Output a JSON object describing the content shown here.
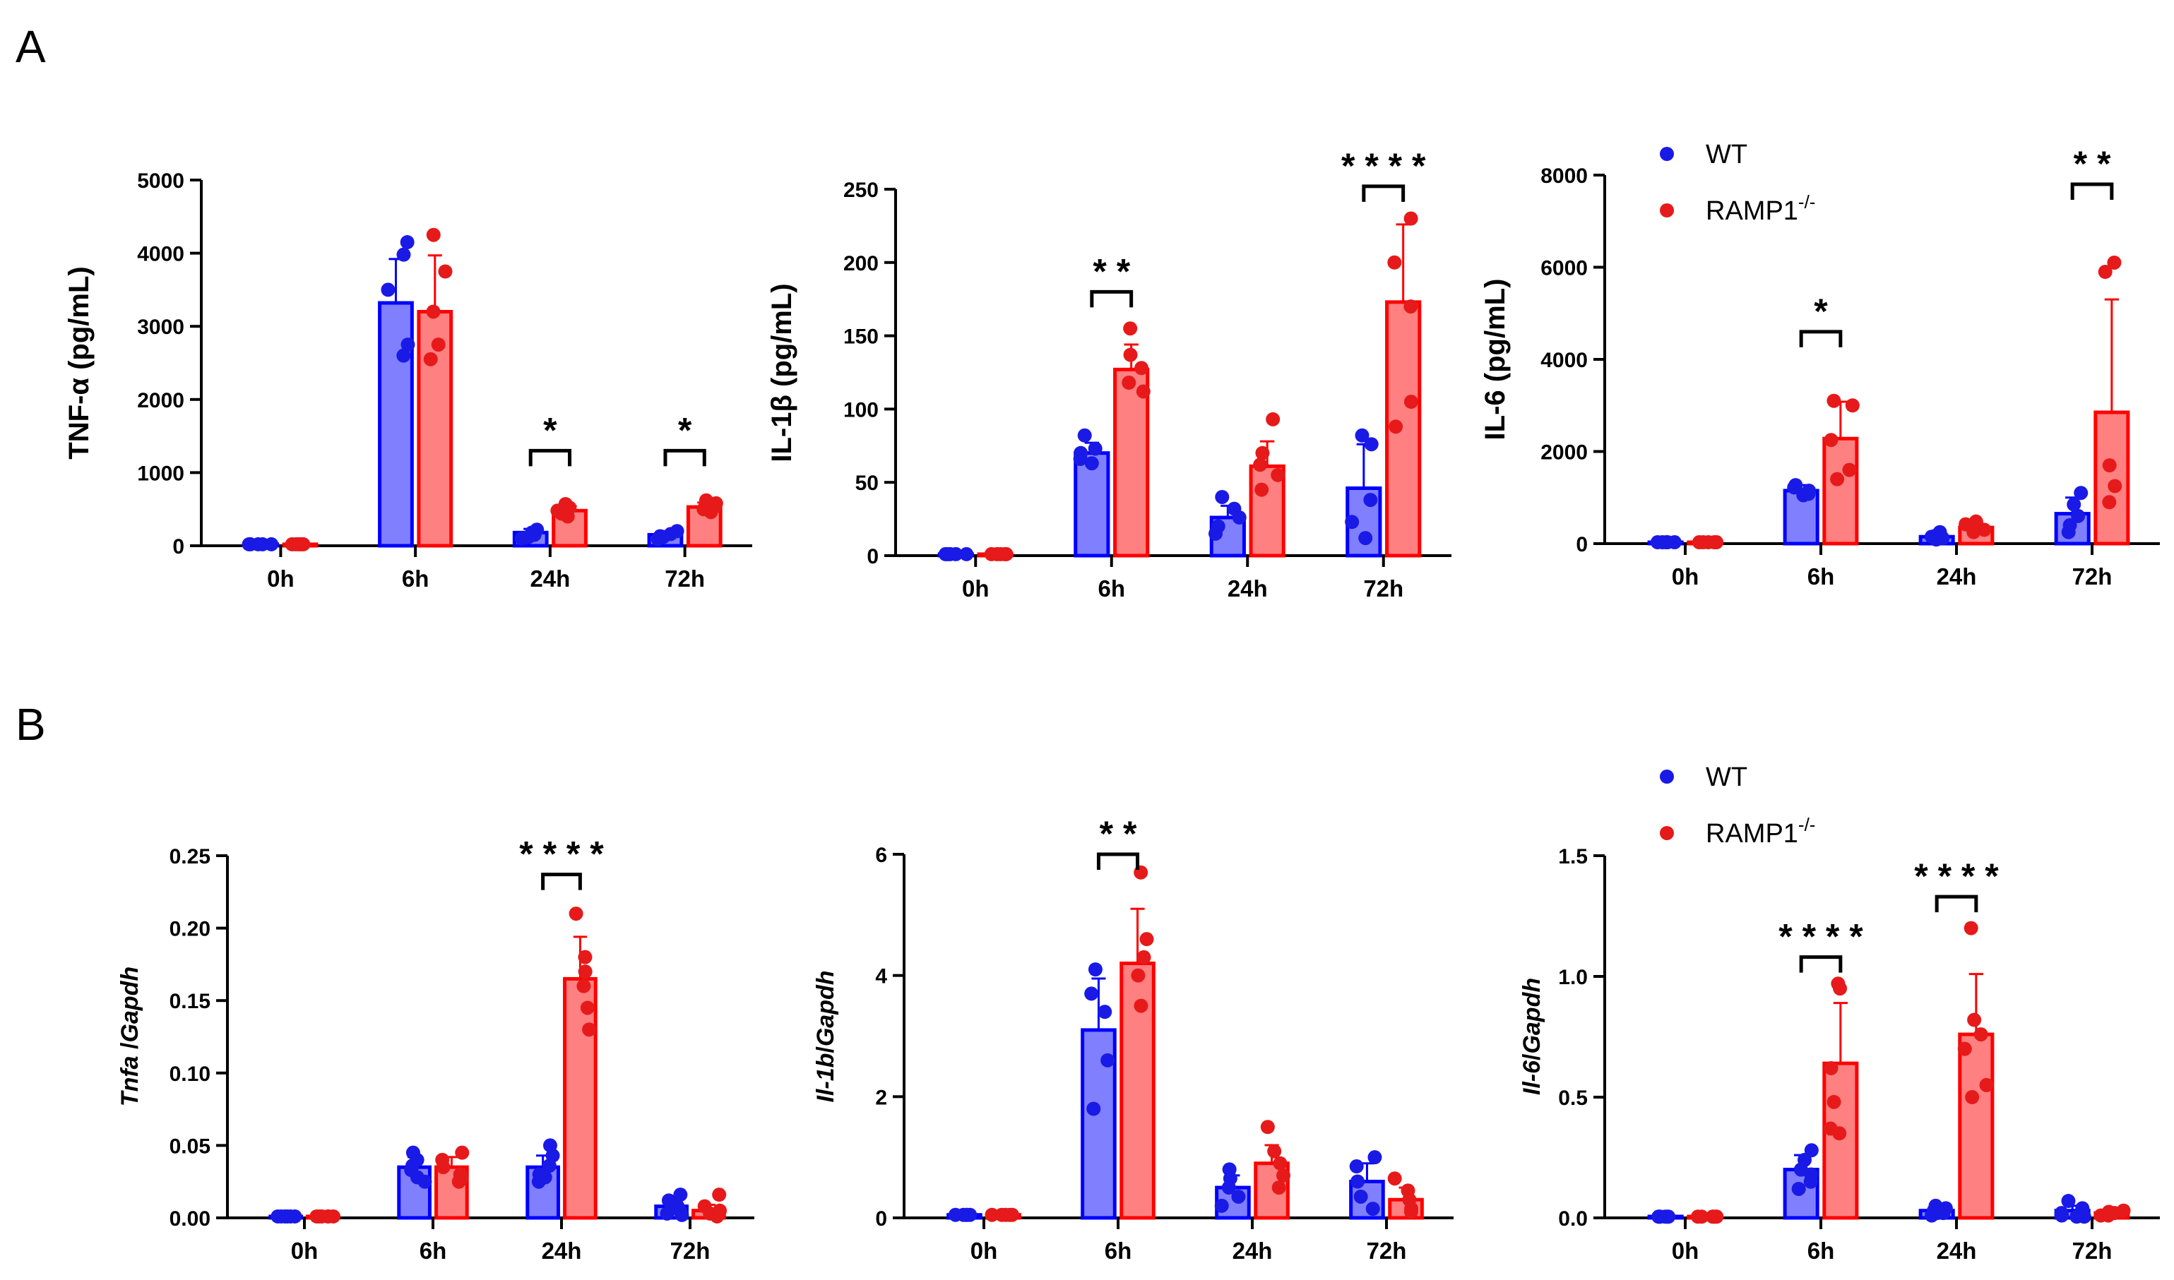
{
  "colors": {
    "wt_fill": "#8080ff",
    "wt_stroke": "#0000ff",
    "wt_dot": "#1a1ae6",
    "ko_fill": "#ff8080",
    "ko_stroke": "#ff0000",
    "ko_dot": "#e61a1a"
  },
  "legend": {
    "wt": "WT",
    "ko": "RAMP1",
    "ko_sup": "-/-"
  },
  "panels": [
    {
      "letter": "A"
    },
    {
      "letter": "B"
    }
  ],
  "chart_data": [
    {
      "type": "bar",
      "panel": "A",
      "ylabel": "TNF-α (pg/mL)",
      "ylabel_italic": false,
      "categories": [
        "0h",
        "6h",
        "24h",
        "72h"
      ],
      "ylim": [
        0,
        5000
      ],
      "yticks": [
        0,
        1000,
        2000,
        3000,
        4000,
        5000
      ],
      "yticklabels": [
        "0",
        "1000",
        "2000",
        "3000",
        "4000",
        "5000"
      ],
      "legend_shown": false,
      "series": [
        {
          "name": "WT",
          "values": [
            20,
            3320,
            180,
            150
          ],
          "sd": [
            10,
            600,
            50,
            50
          ],
          "points": [
            [
              20,
              20,
              20,
              20,
              20
            ],
            [
              4150,
              3980,
              3500,
              2750,
              2600
            ],
            [
              220,
              180,
              150,
              120,
              100
            ],
            [
              200,
              160,
              130,
              120,
              90
            ]
          ]
        },
        {
          "name": "RAMP1-/-",
          "values": [
            20,
            3200,
            480,
            530
          ],
          "sd": [
            10,
            770,
            60,
            60
          ],
          "points": [
            [
              20,
              20,
              20,
              20,
              20
            ],
            [
              4250,
              3750,
              3200,
              2750,
              2550
            ],
            [
              570,
              520,
              480,
              440,
              400
            ],
            [
              620,
              580,
              530,
              500,
              460
            ]
          ]
        }
      ],
      "significance": [
        {
          "category": "24h",
          "label": "*",
          "y": 1300
        },
        {
          "category": "72h",
          "label": "*",
          "y": 1300
        }
      ]
    },
    {
      "type": "bar",
      "panel": "A",
      "ylabel": "IL-1β (pg/mL)",
      "ylabel_italic": false,
      "categories": [
        "0h",
        "6h",
        "24h",
        "72h"
      ],
      "ylim": [
        0,
        250
      ],
      "yticks": [
        0,
        50,
        100,
        150,
        200,
        250
      ],
      "yticklabels": [
        "0",
        "50",
        "100",
        "150",
        "200",
        "250"
      ],
      "legend_shown": false,
      "series": [
        {
          "name": "WT",
          "values": [
            1,
            70,
            26,
            46
          ],
          "sd": [
            0.5,
            7,
            8,
            30
          ],
          "points": [
            [
              1,
              1,
              1,
              1,
              1
            ],
            [
              82,
              73,
              70,
              66,
              63
            ],
            [
              40,
              32,
              26,
              20,
              15
            ],
            [
              82,
              76,
              38,
              23,
              12
            ]
          ]
        },
        {
          "name": "RAMP1-/-",
          "values": [
            1,
            127,
            61,
            173
          ],
          "sd": [
            0.5,
            17,
            17,
            53
          ],
          "points": [
            [
              1,
              1,
              1,
              1,
              1
            ],
            [
              155,
              137,
              128,
              118,
              112
            ],
            [
              93,
              70,
              62,
              55,
              45
            ],
            [
              230,
              200,
              170,
              105,
              88
            ]
          ]
        }
      ],
      "significance": [
        {
          "category": "6h",
          "label": "* *",
          "y": 180
        },
        {
          "category": "72h",
          "label": "* * * *",
          "y": 252
        }
      ]
    },
    {
      "type": "bar",
      "panel": "A",
      "ylabel": "IL-6 (pg/mL)",
      "ylabel_italic": false,
      "categories": [
        "0h",
        "6h",
        "24h",
        "72h"
      ],
      "ylim": [
        0,
        8000
      ],
      "yticks": [
        0,
        2000,
        4000,
        6000,
        8000
      ],
      "yticklabels": [
        "0",
        "2000",
        "4000",
        "6000",
        "8000"
      ],
      "legend_shown": true,
      "series": [
        {
          "name": "WT",
          "values": [
            30,
            1150,
            150,
            650
          ],
          "sd": [
            15,
            120,
            60,
            350
          ],
          "points": [
            [
              30,
              30,
              30,
              30,
              30
            ],
            [
              1270,
              1220,
              1150,
              1080,
              1050
            ],
            [
              250,
              180,
              150,
              120,
              90
            ],
            [
              1100,
              850,
              600,
              400,
              250
            ]
          ]
        },
        {
          "name": "RAMP1-/-",
          "values": [
            30,
            2280,
            350,
            2850
          ],
          "sd": [
            15,
            800,
            110,
            2450
          ],
          "points": [
            [
              30,
              30,
              30,
              30,
              30
            ],
            [
              3100,
              3000,
              2250,
              1600,
              1400
            ],
            [
              480,
              420,
              350,
              300,
              250
            ],
            [
              6100,
              5900,
              1700,
              1250,
              900
            ]
          ]
        }
      ],
      "significance": [
        {
          "category": "6h",
          "label": "*",
          "y": 4600
        },
        {
          "category": "72h",
          "label": "* *",
          "y": 7800
        }
      ]
    },
    {
      "type": "bar",
      "panel": "B",
      "ylabel_italic": true,
      "ylabel_parts": [
        "Tnfa",
        " /",
        "Gapdh"
      ],
      "categories": [
        "0h",
        "6h",
        "24h",
        "72h"
      ],
      "ylim": [
        0,
        0.25
      ],
      "yticks": [
        0,
        0.05,
        0.1,
        0.15,
        0.2,
        0.25
      ],
      "yticklabels": [
        "0.00",
        "0.05",
        "0.10",
        "0.15",
        "0.20",
        "0.25"
      ],
      "legend_shown": false,
      "series": [
        {
          "name": "WT",
          "values": [
            0.001,
            0.035,
            0.035,
            0.008
          ],
          "sd": [
            0.0005,
            0.007,
            0.008,
            0.004
          ],
          "points": [
            [
              0.001,
              0.001,
              0.001,
              0.001,
              0.001,
              0.001
            ],
            [
              0.045,
              0.04,
              0.036,
              0.033,
              0.028,
              0.025
            ],
            [
              0.05,
              0.043,
              0.036,
              0.03,
              0.028,
              0.025
            ],
            [
              0.016,
              0.012,
              0.008,
              0.005,
              0.003,
              0.002
            ]
          ]
        },
        {
          "name": "RAMP1-/-",
          "values": [
            0.001,
            0.035,
            0.165,
            0.005
          ],
          "sd": [
            0.0005,
            0.007,
            0.029,
            0.004
          ],
          "points": [
            [
              0.001,
              0.001,
              0.001,
              0.001,
              0.001,
              0.001
            ],
            [
              0.045,
              0.04,
              0.035,
              0.03,
              0.027,
              0.025
            ],
            [
              0.21,
              0.18,
              0.17,
              0.16,
              0.145,
              0.13
            ],
            [
              0.016,
              0.008,
              0.005,
              0.003,
              0.002,
              0.001
            ]
          ]
        }
      ],
      "significance": [
        {
          "category": "24h",
          "label": "* * * *",
          "y": 0.237
        }
      ]
    },
    {
      "type": "bar",
      "panel": "B",
      "ylabel_italic": true,
      "ylabel_parts": [
        "Il-1b",
        "/",
        "Gapdh"
      ],
      "categories": [
        "0h",
        "6h",
        "24h",
        "72h"
      ],
      "ylim": [
        0,
        6
      ],
      "yticks": [
        0,
        2,
        4,
        6
      ],
      "yticklabels": [
        "0",
        "2",
        "4",
        "6"
      ],
      "legend_shown": false,
      "series": [
        {
          "name": "WT",
          "values": [
            0.05,
            3.1,
            0.5,
            0.6
          ],
          "sd": [
            0.02,
            0.85,
            0.2,
            0.3
          ],
          "points": [
            [
              0.05,
              0.05,
              0.05,
              0.05,
              0.05
            ],
            [
              4.1,
              3.7,
              3.4,
              2.6,
              1.8
            ],
            [
              0.8,
              0.65,
              0.5,
              0.35,
              0.2
            ],
            [
              1.0,
              0.85,
              0.6,
              0.35,
              0.15
            ]
          ]
        },
        {
          "name": "RAMP1-/-",
          "values": [
            0.05,
            4.2,
            0.9,
            0.3
          ],
          "sd": [
            0.02,
            0.9,
            0.3,
            0.2
          ],
          "points": [
            [
              0.05,
              0.05,
              0.05,
              0.05,
              0.05
            ],
            [
              5.7,
              4.6,
              4.3,
              4.0,
              3.5
            ],
            [
              1.5,
              1.1,
              0.9,
              0.7,
              0.5
            ],
            [
              0.65,
              0.45,
              0.3,
              0.15,
              0.1
            ]
          ]
        }
      ],
      "significance": [
        {
          "category": "6h",
          "label": "* *",
          "y": 6.0
        }
      ]
    },
    {
      "type": "bar",
      "panel": "B",
      "ylabel_italic": true,
      "ylabel_parts": [
        "Il-6",
        "/",
        "Gapdh"
      ],
      "categories": [
        "0h",
        "6h",
        "24h",
        "72h"
      ],
      "ylim": [
        0,
        1.5
      ],
      "yticks": [
        0,
        0.5,
        1.0,
        1.5
      ],
      "yticklabels": [
        "0.0",
        "0.5",
        "1.0",
        "1.5"
      ],
      "legend_shown": true,
      "series": [
        {
          "name": "WT",
          "values": [
            0.005,
            0.2,
            0.03,
            0.03
          ],
          "sd": [
            0.002,
            0.06,
            0.01,
            0.02
          ],
          "points": [
            [
              0.005,
              0.005,
              0.005,
              0.005,
              0.005,
              0.005
            ],
            [
              0.28,
              0.24,
              0.2,
              0.18,
              0.15,
              0.12
            ],
            [
              0.05,
              0.04,
              0.03,
              0.02,
              0.02,
              0.01
            ],
            [
              0.07,
              0.04,
              0.02,
              0.01,
              0.005,
              0.005
            ]
          ]
        },
        {
          "name": "RAMP1-/-",
          "values": [
            0.005,
            0.64,
            0.76,
            0.02
          ],
          "sd": [
            0.002,
            0.25,
            0.25,
            0.01
          ],
          "points": [
            [
              0.005,
              0.005,
              0.005,
              0.005,
              0.005,
              0.005
            ],
            [
              0.97,
              0.95,
              0.62,
              0.48,
              0.37,
              0.35
            ],
            [
              1.2,
              0.82,
              0.76,
              0.7,
              0.55,
              0.5
            ],
            [
              0.03,
              0.025,
              0.02,
              0.015,
              0.01,
              0.01
            ]
          ]
        }
      ],
      "significance": [
        {
          "category": "6h",
          "label": "* * * *",
          "y": 1.08
        },
        {
          "category": "24h",
          "label": "* * * *",
          "y": 1.33
        }
      ]
    }
  ]
}
